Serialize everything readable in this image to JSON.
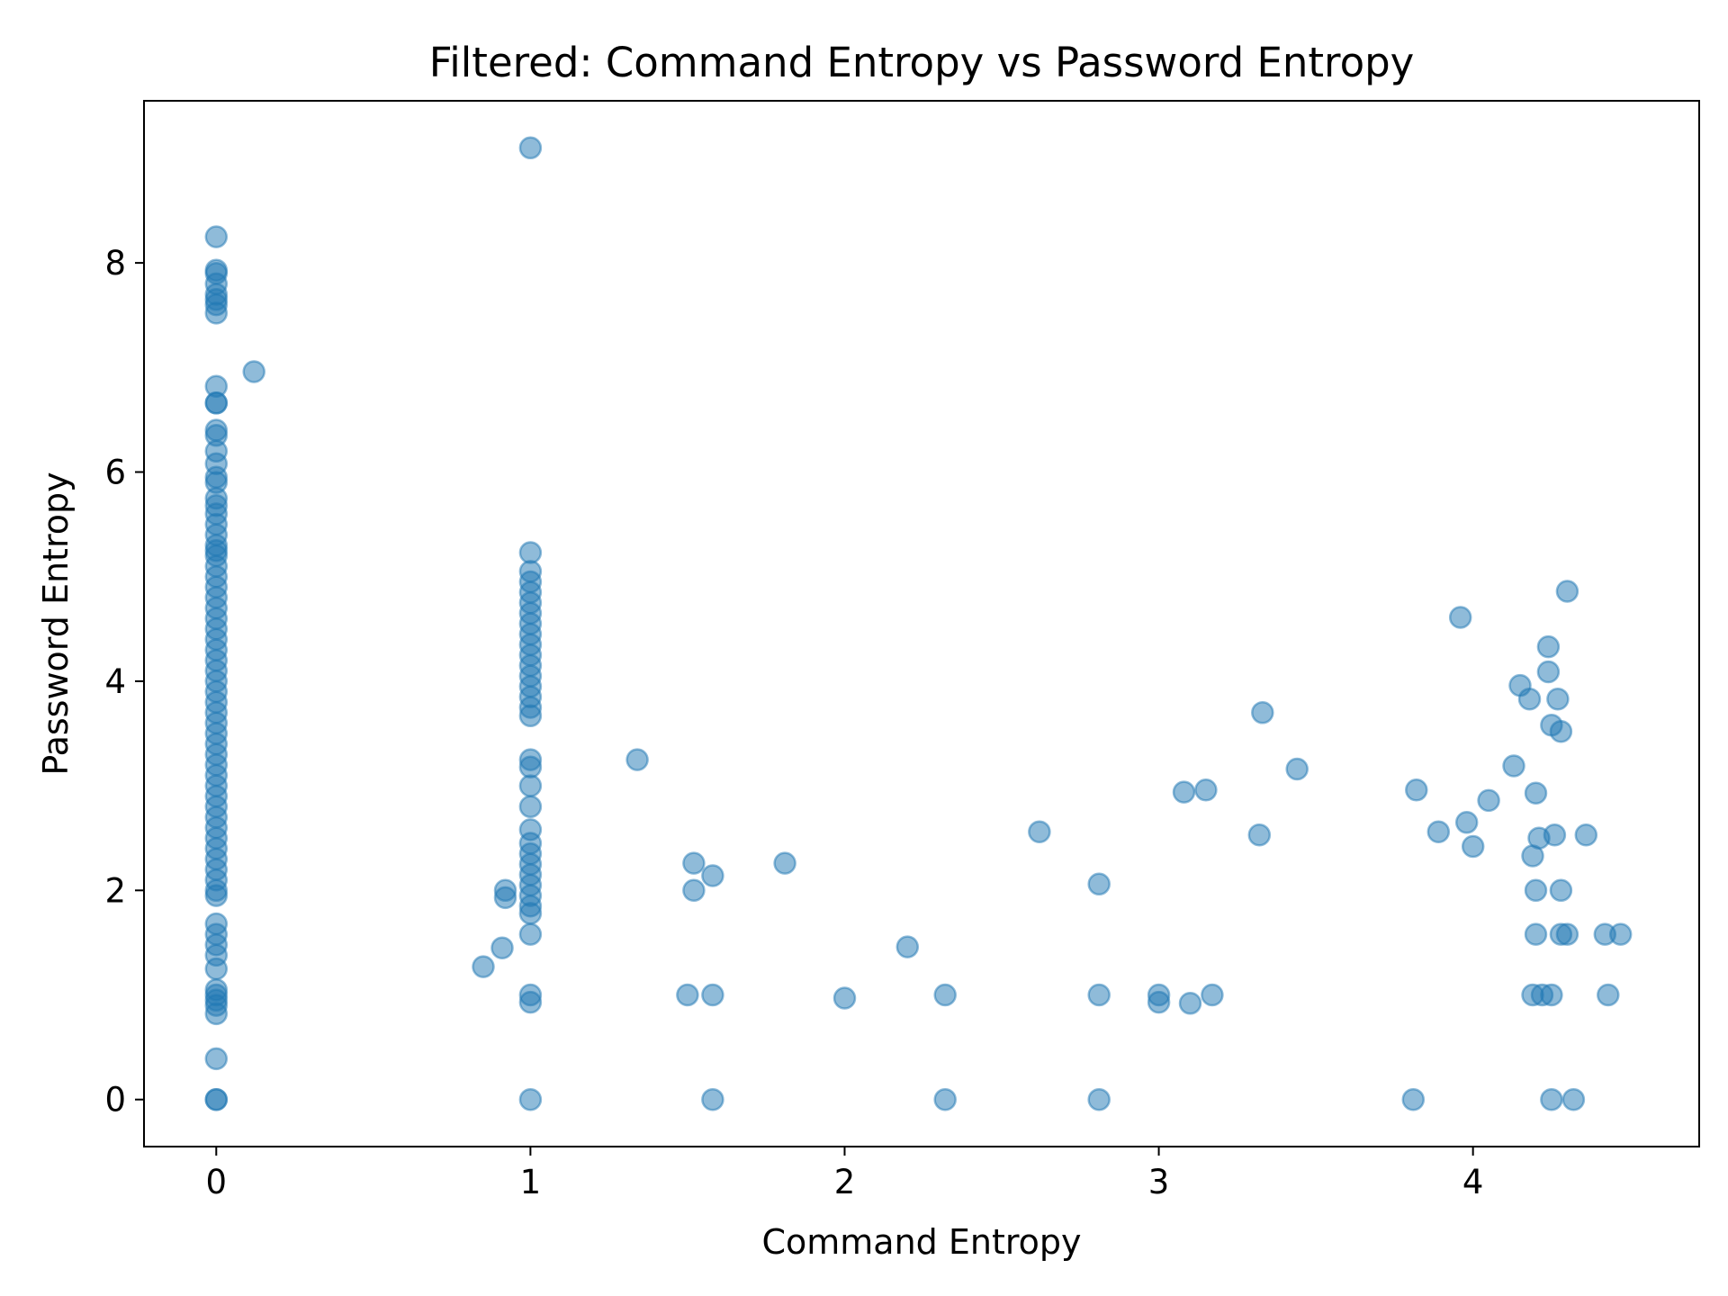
{
  "chart_data": {
    "type": "scatter",
    "title": "Filtered: Command Entropy vs Password Entropy",
    "xlabel": "Command Entropy",
    "ylabel": "Password Entropy",
    "xlim": [
      -0.23,
      4.72
    ],
    "ylim": [
      -0.45,
      9.55
    ],
    "xticks": [
      0,
      1,
      2,
      3,
      4
    ],
    "yticks": [
      0,
      2,
      4,
      6,
      8
    ],
    "grid": false,
    "legend": "none",
    "color": "#1f77b4",
    "alpha": 0.5,
    "series": [
      {
        "points": [
          [
            0,
            8.25
          ],
          [
            0,
            7.93
          ],
          [
            0,
            7.9
          ],
          [
            0,
            7.8
          ],
          [
            0,
            7.7
          ],
          [
            0,
            7.65
          ],
          [
            0,
            7.6
          ],
          [
            0,
            7.52
          ],
          [
            0.12,
            6.96
          ],
          [
            0,
            6.82
          ],
          [
            0,
            6.66
          ],
          [
            0,
            6.66
          ],
          [
            0,
            6.4
          ],
          [
            0,
            6.35
          ],
          [
            0,
            6.2
          ],
          [
            0,
            6.08
          ],
          [
            0,
            5.95
          ],
          [
            0,
            5.9
          ],
          [
            0,
            5.75
          ],
          [
            0,
            5.68
          ],
          [
            0,
            5.6
          ],
          [
            0,
            5.5
          ],
          [
            0,
            5.4
          ],
          [
            0,
            5.3
          ],
          [
            0,
            5.25
          ],
          [
            0,
            5.2
          ],
          [
            0,
            5.1
          ],
          [
            0,
            5.0
          ],
          [
            0,
            4.9
          ],
          [
            0,
            4.8
          ],
          [
            0,
            4.7
          ],
          [
            0,
            4.6
          ],
          [
            0,
            4.5
          ],
          [
            0,
            4.4
          ],
          [
            0,
            4.3
          ],
          [
            0,
            4.2
          ],
          [
            0,
            4.1
          ],
          [
            0,
            4.0
          ],
          [
            0,
            3.9
          ],
          [
            0,
            3.8
          ],
          [
            0,
            3.7
          ],
          [
            0,
            3.6
          ],
          [
            0,
            3.5
          ],
          [
            0,
            3.4
          ],
          [
            0,
            3.3
          ],
          [
            0,
            3.2
          ],
          [
            0,
            3.1
          ],
          [
            0,
            3.0
          ],
          [
            0,
            2.9
          ],
          [
            0,
            2.8
          ],
          [
            0,
            2.7
          ],
          [
            0,
            2.6
          ],
          [
            0,
            2.5
          ],
          [
            0,
            2.4
          ],
          [
            0,
            2.3
          ],
          [
            0,
            2.2
          ],
          [
            0,
            2.1
          ],
          [
            0,
            2.0
          ],
          [
            0,
            1.95
          ],
          [
            0,
            1.68
          ],
          [
            0,
            1.58
          ],
          [
            0,
            1.48
          ],
          [
            0,
            1.38
          ],
          [
            0,
            1.25
          ],
          [
            0,
            1.05
          ],
          [
            0,
            1.0
          ],
          [
            0,
            0.95
          ],
          [
            0,
            0.9
          ],
          [
            0,
            0.82
          ],
          [
            0,
            0.39
          ],
          [
            0,
            0
          ],
          [
            0,
            0
          ],
          [
            0.85,
            1.27
          ],
          [
            0.91,
            1.45
          ],
          [
            0.92,
            2.0
          ],
          [
            0.92,
            1.93
          ],
          [
            1,
            9.1
          ],
          [
            1,
            5.23
          ],
          [
            1,
            5.05
          ],
          [
            1,
            4.95
          ],
          [
            1,
            4.85
          ],
          [
            1,
            4.75
          ],
          [
            1,
            4.65
          ],
          [
            1,
            4.55
          ],
          [
            1,
            4.45
          ],
          [
            1,
            4.35
          ],
          [
            1,
            4.25
          ],
          [
            1,
            4.15
          ],
          [
            1,
            4.05
          ],
          [
            1,
            3.95
          ],
          [
            1,
            3.85
          ],
          [
            1,
            3.75
          ],
          [
            1,
            3.67
          ],
          [
            1,
            3.25
          ],
          [
            1,
            3.18
          ],
          [
            1,
            3.0
          ],
          [
            1,
            2.8
          ],
          [
            1,
            2.58
          ],
          [
            1,
            2.45
          ],
          [
            1,
            2.35
          ],
          [
            1,
            2.25
          ],
          [
            1,
            2.15
          ],
          [
            1,
            2.05
          ],
          [
            1,
            1.95
          ],
          [
            1,
            1.85
          ],
          [
            1,
            1.78
          ],
          [
            1,
            1.58
          ],
          [
            1,
            1.0
          ],
          [
            1,
            0.93
          ],
          [
            1,
            0
          ],
          [
            1.34,
            3.25
          ],
          [
            1.5,
            1.0
          ],
          [
            1.52,
            2.26
          ],
          [
            1.52,
            2.0
          ],
          [
            1.58,
            2.14
          ],
          [
            1.58,
            1.0
          ],
          [
            1.58,
            0
          ],
          [
            1.81,
            2.26
          ],
          [
            2.0,
            0.97
          ],
          [
            2.2,
            1.46
          ],
          [
            2.32,
            1.0
          ],
          [
            2.32,
            0
          ],
          [
            2.62,
            2.56
          ],
          [
            2.81,
            2.06
          ],
          [
            2.81,
            1.0
          ],
          [
            2.81,
            0
          ],
          [
            3.0,
            1.0
          ],
          [
            3.0,
            0.93
          ],
          [
            3.08,
            2.94
          ],
          [
            3.1,
            0.92
          ],
          [
            3.15,
            2.96
          ],
          [
            3.17,
            1.0
          ],
          [
            3.32,
            2.53
          ],
          [
            3.33,
            3.7
          ],
          [
            3.44,
            3.16
          ],
          [
            3.81,
            0
          ],
          [
            3.82,
            2.96
          ],
          [
            3.89,
            2.56
          ],
          [
            3.96,
            4.61
          ],
          [
            3.98,
            2.65
          ],
          [
            4.0,
            2.42
          ],
          [
            4.05,
            2.86
          ],
          [
            4.13,
            3.19
          ],
          [
            4.15,
            3.96
          ],
          [
            4.18,
            3.83
          ],
          [
            4.19,
            2.33
          ],
          [
            4.2,
            2.93
          ],
          [
            4.21,
            2.5
          ],
          [
            4.19,
            1.0
          ],
          [
            4.2,
            2.0
          ],
          [
            4.2,
            1.58
          ],
          [
            4.22,
            1.0
          ],
          [
            4.24,
            4.33
          ],
          [
            4.24,
            4.09
          ],
          [
            4.25,
            3.58
          ],
          [
            4.25,
            1.0
          ],
          [
            4.25,
            0
          ],
          [
            4.26,
            2.53
          ],
          [
            4.27,
            3.83
          ],
          [
            4.28,
            3.52
          ],
          [
            4.28,
            2.0
          ],
          [
            4.28,
            1.58
          ],
          [
            4.3,
            4.86
          ],
          [
            4.3,
            1.58
          ],
          [
            4.32,
            0
          ],
          [
            4.36,
            2.53
          ],
          [
            4.42,
            1.58
          ],
          [
            4.43,
            1.0
          ],
          [
            4.47,
            1.58
          ]
        ]
      }
    ]
  }
}
